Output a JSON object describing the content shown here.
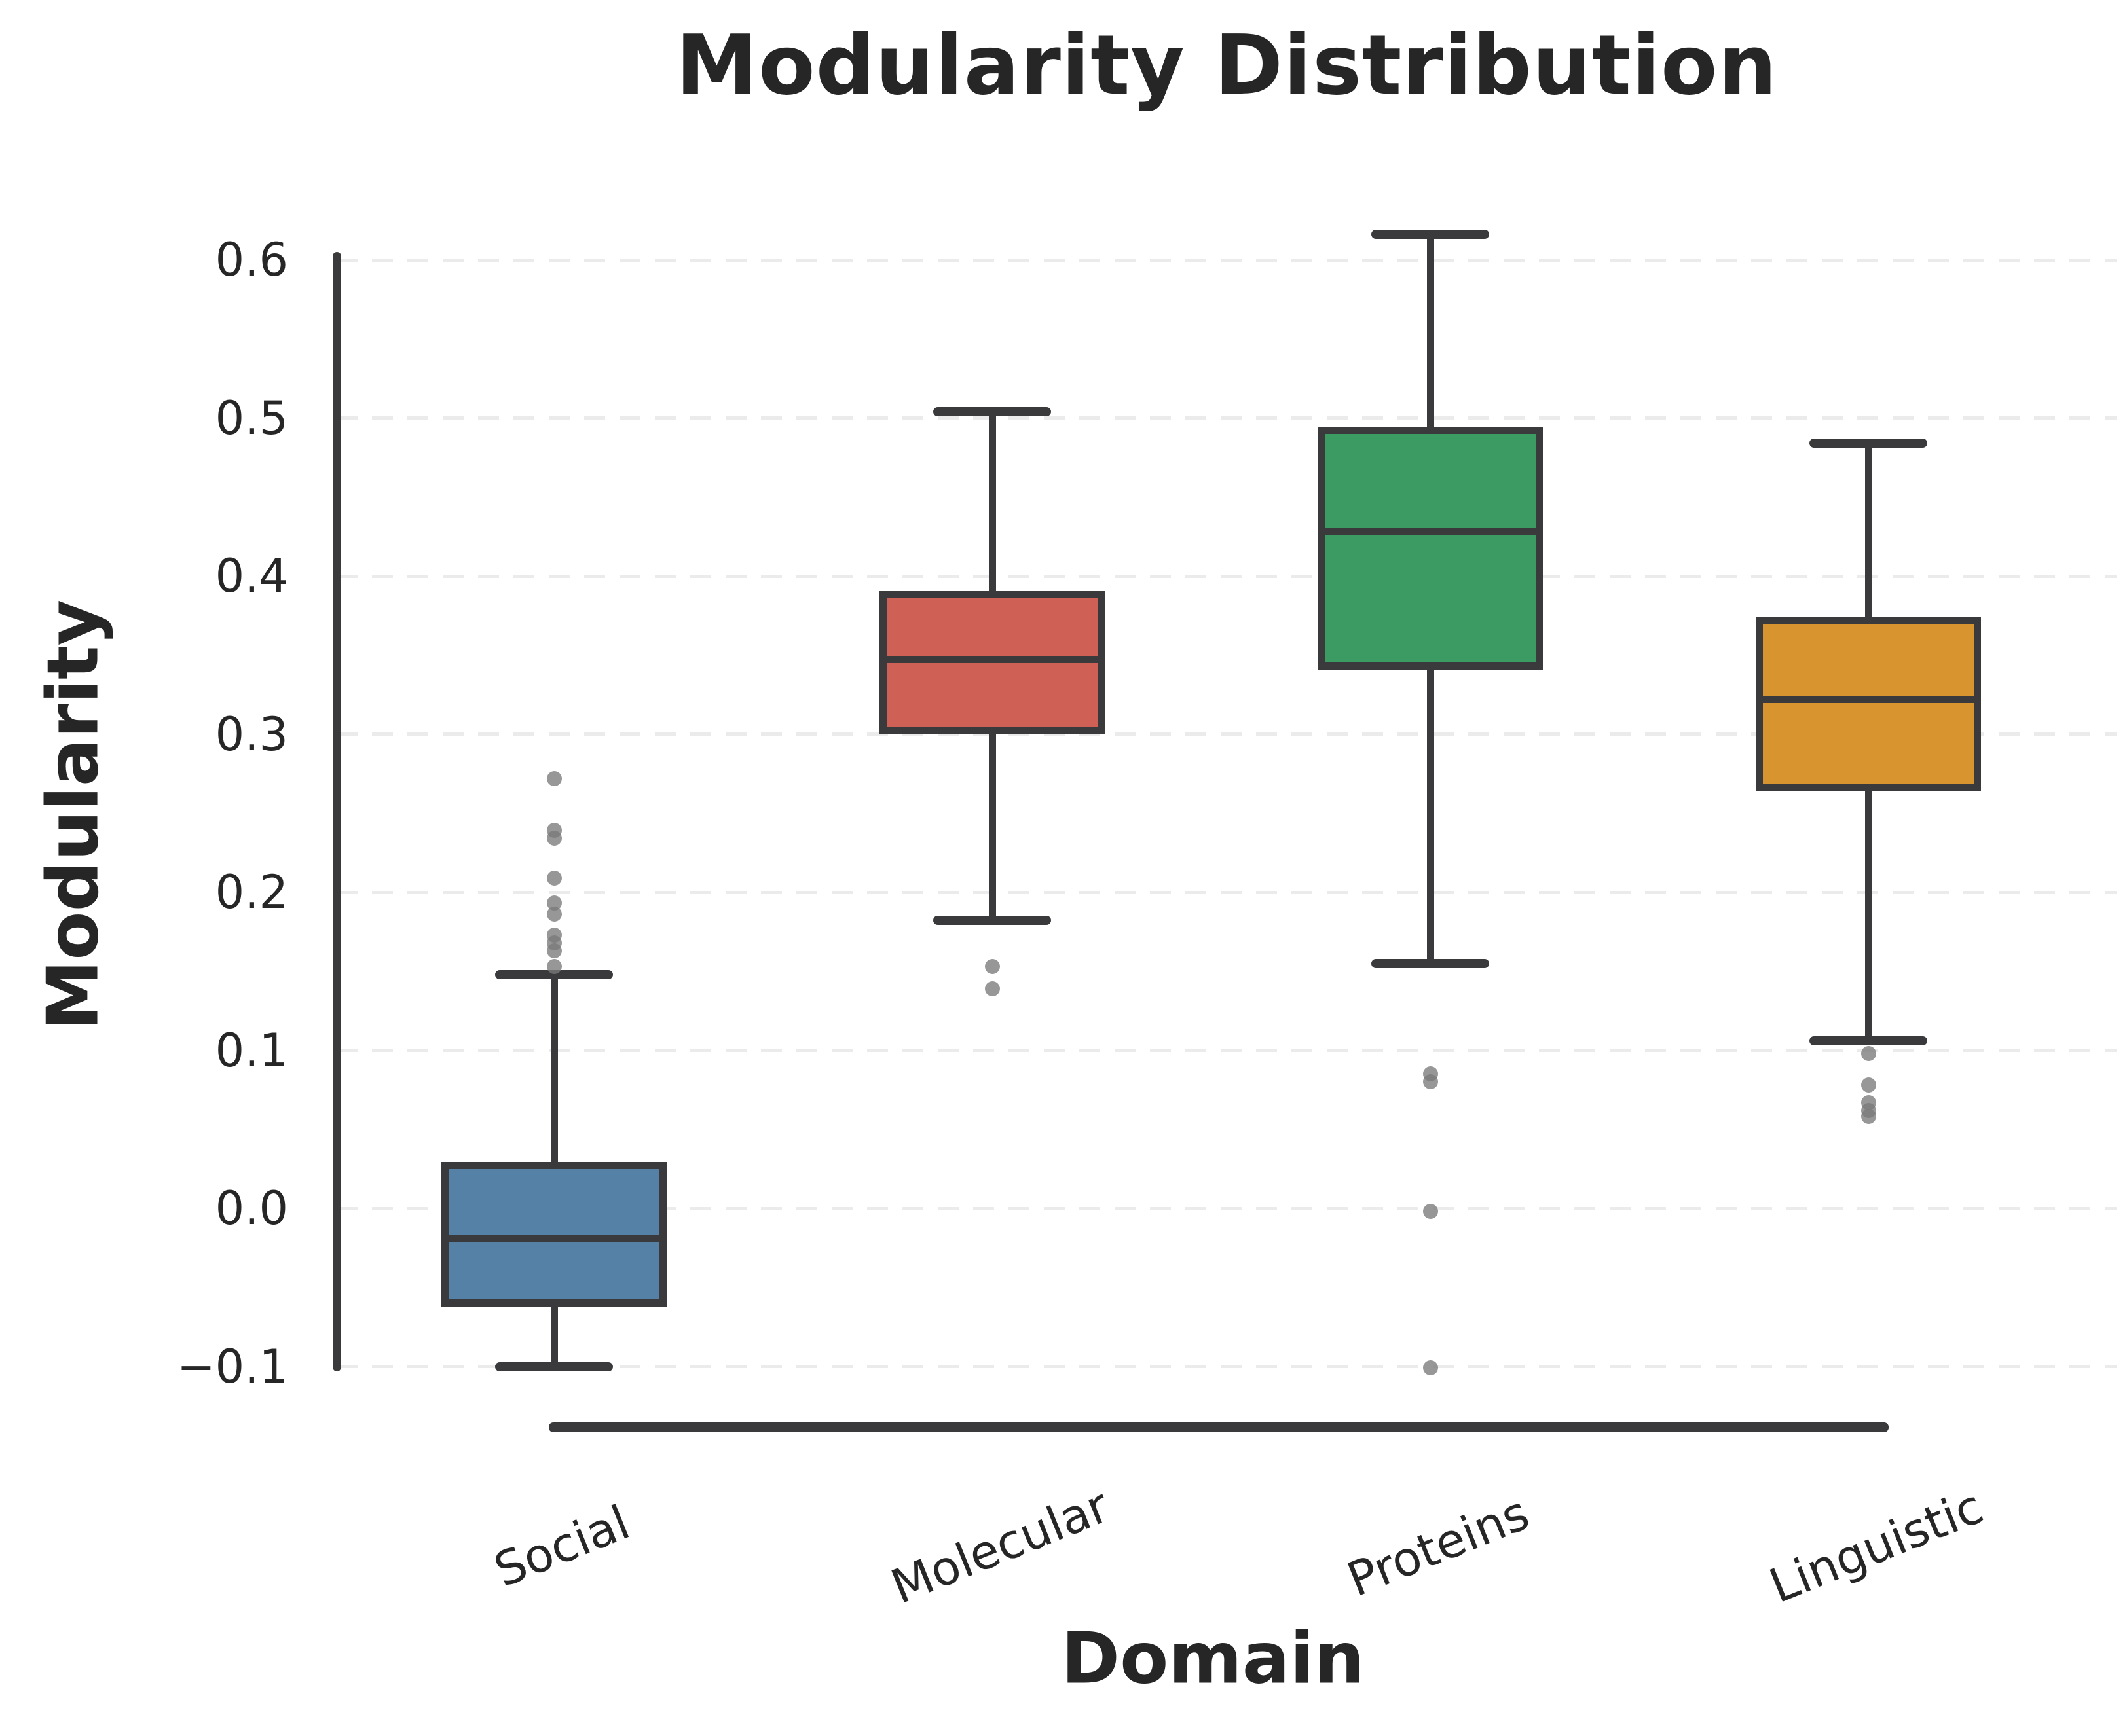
{
  "chart_data": {
    "type": "box",
    "title": "Modularity Distribution",
    "xlabel": "Domain",
    "ylabel": "Modularity",
    "categories": [
      "Social",
      "Molecular",
      "Proteins",
      "Linguistic"
    ],
    "yticks": [
      "0.6",
      "0.5",
      "0.4",
      "0.3",
      "0.2",
      "0.1",
      "0.0",
      "−0.1"
    ],
    "ytick_values": [
      0.6,
      0.5,
      0.4,
      0.3,
      0.2,
      0.1,
      0.0,
      -0.1
    ],
    "ylim": [
      -0.16,
      0.66
    ],
    "grid": "horizontal-dashed",
    "legend_position": "none",
    "series": [
      {
        "name": "Social",
        "color": "#5581A6",
        "whisker_low": -0.1,
        "q1": -0.06,
        "median": -0.019,
        "q3": 0.027,
        "whisker_high": 0.148,
        "outliers": [
          0.153,
          0.163,
          0.168,
          0.173,
          0.186,
          0.193,
          0.209,
          0.234,
          0.239,
          0.272
        ]
      },
      {
        "name": "Molecular",
        "color": "#CF6055",
        "whisker_low": 0.182,
        "q1": 0.302,
        "median": 0.347,
        "q3": 0.388,
        "whisker_high": 0.504,
        "outliers": [
          0.153,
          0.139
        ]
      },
      {
        "name": "Proteins",
        "color": "#3C9B62",
        "whisker_low": 0.155,
        "q1": 0.343,
        "median": 0.428,
        "q3": 0.492,
        "whisker_high": 0.616,
        "outliers": [
          0.085,
          0.08,
          -0.002,
          -0.101
        ]
      },
      {
        "name": "Linguistic",
        "color": "#D8952F",
        "whisker_low": 0.106,
        "q1": 0.266,
        "median": 0.322,
        "q3": 0.372,
        "whisker_high": 0.484,
        "outliers": [
          0.098,
          0.078,
          0.067,
          0.062,
          0.058
        ]
      }
    ],
    "style": {
      "line_color": "#3A3A3C",
      "grid_color": "#EBEBEB",
      "text_color": "#262626",
      "outlier_color": "#8A8A8A",
      "background": "#FFFFFF"
    }
  }
}
